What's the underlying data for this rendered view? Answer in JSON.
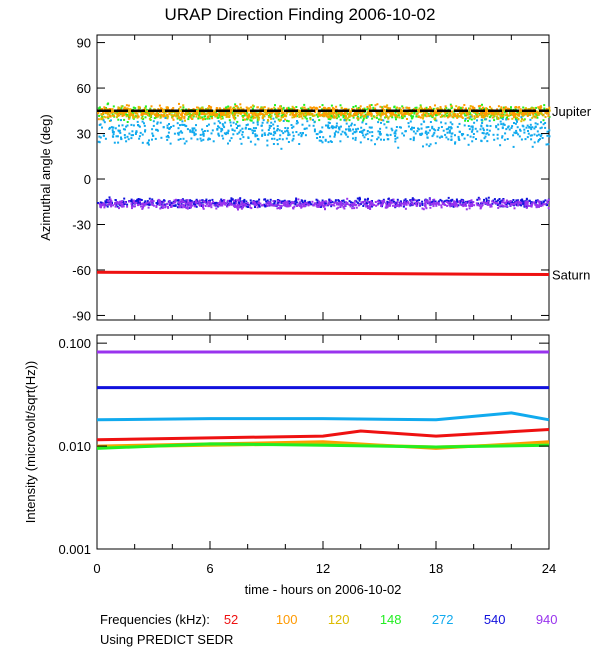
{
  "title": "URAP Direction Finding  2006-10-02",
  "xlabel": "time - hours on 2006-10-02",
  "x_ticks": [
    "0",
    "6",
    "12",
    "18",
    "24"
  ],
  "legend": {
    "label": "Frequencies (kHz):",
    "items": [
      {
        "value": "52",
        "color": "#ee1111"
      },
      {
        "value": "100",
        "color": "#ff9900"
      },
      {
        "value": "120",
        "color": "#ddbb00"
      },
      {
        "value": "148",
        "color": "#22ee22"
      },
      {
        "value": "272",
        "color": "#11aaee"
      },
      {
        "value": "540",
        "color": "#1111dd"
      },
      {
        "value": "940",
        "color": "#9933ee"
      }
    ]
  },
  "note": "Using PREDICT SEDR",
  "chart_data": [
    {
      "type": "scatter",
      "panel": "top",
      "ylabel": "Azimuthal angle (deg)",
      "xlim": [
        0,
        24
      ],
      "ylim": [
        -93,
        95
      ],
      "y_ticks": [
        90,
        60,
        30,
        0,
        -30,
        -60,
        -90
      ],
      "reference_lines": [
        {
          "name": "Jupiter",
          "y": 45,
          "color": "#000000",
          "style": "dashed"
        },
        {
          "name": "Saturn",
          "y_start": -61.5,
          "y_end": -63,
          "color": "#ee1111",
          "style": "solid"
        }
      ],
      "series": [
        {
          "frequency_khz": 148,
          "color": "#22ee22",
          "x": [
            0,
            24
          ],
          "y_mean": 44,
          "y_spread": 7
        },
        {
          "frequency_khz": 120,
          "color": "#ddbb00",
          "x": [
            0,
            24
          ],
          "y_mean": 44,
          "y_spread": 6
        },
        {
          "frequency_khz": 100,
          "color": "#ff9900",
          "x": [
            0,
            24
          ],
          "y_mean": 45,
          "y_spread": 6
        },
        {
          "frequency_khz": 272,
          "color": "#11aaee",
          "x": [
            0,
            24
          ],
          "y_mean": 32,
          "y_spread": 12
        },
        {
          "frequency_khz": 540,
          "color": "#1111dd",
          "x": [
            0,
            24
          ],
          "y_mean": -15,
          "y_spread": 4
        },
        {
          "frequency_khz": 940,
          "color": "#9933ee",
          "x": [
            0,
            24
          ],
          "y_mean": -16,
          "y_spread": 4
        }
      ]
    },
    {
      "type": "line",
      "panel": "bottom",
      "ylabel": "Intensity (microvolt/sqrt(Hz))",
      "xlim": [
        0,
        24
      ],
      "yscale": "log",
      "ylim": [
        0.001,
        0.12
      ],
      "y_ticks": [
        "0.100",
        "0.010",
        "0.001"
      ],
      "y_tick_values": [
        0.1,
        0.01,
        0.001
      ],
      "series": [
        {
          "frequency_khz": 940,
          "color": "#9933ee",
          "x": [
            0,
            6,
            12,
            18,
            24
          ],
          "y": [
            0.082,
            0.082,
            0.082,
            0.082,
            0.082
          ]
        },
        {
          "frequency_khz": 540,
          "color": "#1111dd",
          "x": [
            0,
            6,
            12,
            18,
            24
          ],
          "y": [
            0.037,
            0.037,
            0.037,
            0.037,
            0.037
          ]
        },
        {
          "frequency_khz": 272,
          "color": "#11aaee",
          "x": [
            0,
            6,
            12,
            18,
            22,
            24
          ],
          "y": [
            0.018,
            0.0185,
            0.0185,
            0.018,
            0.021,
            0.018
          ]
        },
        {
          "frequency_khz": 52,
          "color": "#ee1111",
          "x": [
            0,
            6,
            12,
            14,
            18,
            24
          ],
          "y": [
            0.0115,
            0.012,
            0.0125,
            0.014,
            0.0125,
            0.0145
          ]
        },
        {
          "frequency_khz": 100,
          "color": "#ff9900",
          "x": [
            0,
            6,
            12,
            18,
            24
          ],
          "y": [
            0.01,
            0.0105,
            0.011,
            0.0095,
            0.011
          ]
        },
        {
          "frequency_khz": 120,
          "color": "#ddbb00",
          "x": [
            0,
            6,
            12,
            18,
            24
          ],
          "y": [
            0.0098,
            0.0102,
            0.0105,
            0.0098,
            0.0105
          ]
        },
        {
          "frequency_khz": 148,
          "color": "#22ee22",
          "x": [
            0,
            6,
            12,
            18,
            24
          ],
          "y": [
            0.0095,
            0.0105,
            0.0102,
            0.0098,
            0.0102
          ]
        }
      ]
    }
  ]
}
